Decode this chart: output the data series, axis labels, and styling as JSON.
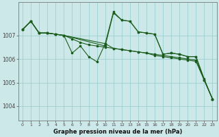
{
  "background_color": "#cce8e8",
  "line_color": "#1a5c1a",
  "grid_color": "#9ecece",
  "xlabel": "Graphe pression niveau de la mer (hPa)",
  "xlim": [
    -0.5,
    23.5
  ],
  "ylim": [
    1003.4,
    1008.4
  ],
  "yticks": [
    1004,
    1005,
    1006,
    1007
  ],
  "xticks": [
    0,
    1,
    2,
    3,
    4,
    5,
    6,
    7,
    8,
    9,
    10,
    11,
    12,
    13,
    14,
    15,
    16,
    17,
    18,
    19,
    20,
    21,
    22,
    23
  ],
  "series": [
    {
      "x": [
        0,
        1,
        2,
        3,
        4,
        5,
        6,
        7,
        8,
        9,
        10,
        11,
        12,
        13,
        14,
        15,
        16,
        17,
        18,
        19,
        20,
        21,
        22,
        23
      ],
      "y": [
        1007.25,
        1007.6,
        1007.1,
        1007.1,
        1007.05,
        1007.0,
        1006.85,
        1006.7,
        1006.6,
        1006.55,
        1006.5,
        1006.45,
        1006.4,
        1006.35,
        1006.3,
        1006.25,
        1006.2,
        1006.15,
        1006.1,
        1006.05,
        1006.0,
        1005.95,
        1005.1,
        1004.3
      ]
    },
    {
      "x": [
        0,
        1,
        2,
        3,
        4,
        5,
        10,
        11,
        12,
        13,
        14,
        15,
        16,
        17,
        18,
        19,
        20,
        21,
        22,
        23
      ],
      "y": [
        1007.25,
        1007.6,
        1007.1,
        1007.1,
        1007.05,
        1007.0,
        1006.55,
        1007.95,
        1007.65,
        1007.6,
        1007.15,
        1007.1,
        1007.05,
        1006.2,
        1006.25,
        1006.2,
        1006.1,
        1006.1,
        1005.1,
        1004.3
      ]
    },
    {
      "x": [
        0,
        1,
        2,
        3,
        4,
        5,
        10,
        11,
        12,
        13,
        14,
        15,
        16,
        17,
        18,
        19,
        20,
        21,
        22,
        23
      ],
      "y": [
        1007.25,
        1007.6,
        1007.1,
        1007.1,
        1007.05,
        1007.0,
        1006.65,
        1008.0,
        1007.65,
        1007.6,
        1007.15,
        1007.1,
        1007.05,
        1006.2,
        1006.25,
        1006.2,
        1006.1,
        1006.1,
        1005.15,
        1004.3
      ]
    },
    {
      "x": [
        0,
        1,
        2,
        3,
        4,
        5,
        6,
        7,
        8,
        9,
        10,
        11,
        12,
        13,
        14,
        15,
        16,
        17,
        18,
        19,
        20,
        21,
        22,
        23
      ],
      "y": [
        1007.25,
        1007.6,
        1007.1,
        1007.1,
        1007.05,
        1007.0,
        1006.25,
        1006.55,
        1006.1,
        1005.88,
        1006.65,
        1006.45,
        1006.4,
        1006.35,
        1006.3,
        1006.25,
        1006.15,
        1006.1,
        1006.05,
        1006.0,
        1005.95,
        1005.9,
        1005.1,
        1004.3
      ]
    }
  ]
}
